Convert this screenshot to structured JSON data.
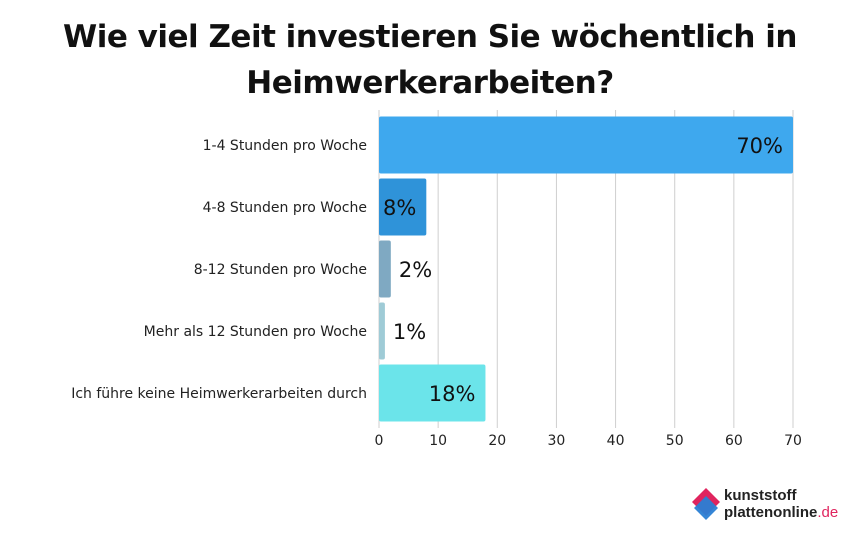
{
  "chart_data": {
    "type": "bar",
    "orientation": "horizontal",
    "title": "Wie viel Zeit investieren Sie wöchentlich in Heimwerkerarbeiten?",
    "categories": [
      "1-4 Stunden pro Woche",
      "4-8 Stunden pro Woche",
      "8-12 Stunden pro Woche",
      "Mehr als 12 Stunden pro Woche",
      "Ich führe keine Heimwerkerarbeiten durch"
    ],
    "values": [
      70,
      8,
      2,
      1,
      18
    ],
    "data_labels": [
      "70%",
      "8%",
      "2%",
      "1%",
      "18%"
    ],
    "colors": [
      "#3ea8ee",
      "#2f93d9",
      "#7fa9c2",
      "#9fcbd6",
      "#6be4ea"
    ],
    "xlim": [
      0,
      70
    ],
    "xticks": [
      0,
      10,
      20,
      30,
      40,
      50,
      60,
      70
    ],
    "grid": true,
    "xlabel": "",
    "ylabel": ""
  },
  "logo": {
    "line1": "kunststoff",
    "line2": "plattenonline",
    "tld": ".de"
  }
}
